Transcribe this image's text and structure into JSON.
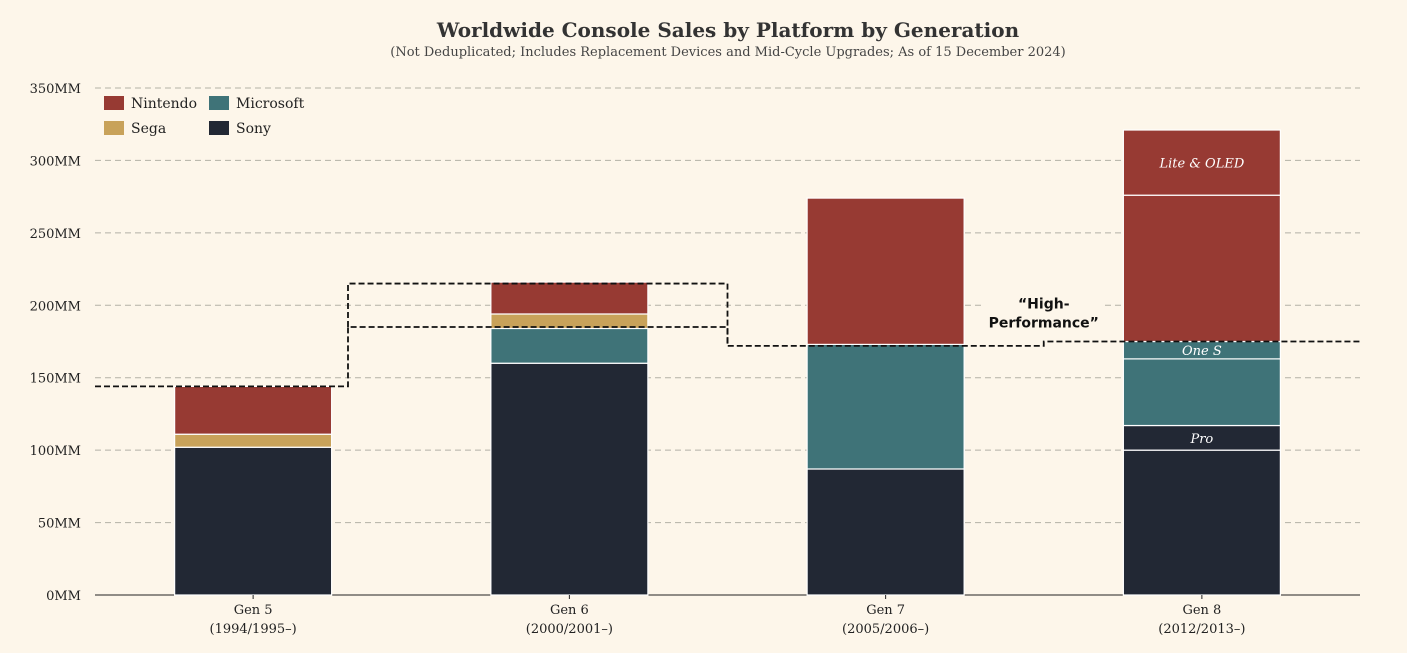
{
  "chart_data": {
    "type": "bar",
    "stacked": true,
    "title": "Worldwide Console Sales by Platform by Generation",
    "subtitle": "(Not Deduplicated; Includes Replacement Devices and Mid-Cycle Upgrades; As of 15 December 2024)",
    "ylim": [
      0,
      350
    ],
    "yticks": [
      0,
      50,
      100,
      150,
      200,
      250,
      300,
      350
    ],
    "ytick_suffix": "MM",
    "grid": true,
    "legend_placement": "top-left",
    "categories": [
      {
        "name": "Gen 5",
        "years": "(1994/1995–)"
      },
      {
        "name": "Gen 6",
        "years": "(2000/2001–)"
      },
      {
        "name": "Gen 7",
        "years": "(2005/2006–)"
      },
      {
        "name": "Gen 8",
        "years": "(2012/2013–)"
      }
    ],
    "colors": {
      "Sony": "#222834",
      "Microsoft": "#3f7378",
      "Sega": "#c8a25a",
      "Nintendo": "#973a33"
    },
    "legend": [
      {
        "name": "Nintendo",
        "color": "#973a33"
      },
      {
        "name": "Microsoft",
        "color": "#3f7378"
      },
      {
        "name": "Sega",
        "color": "#c8a25a"
      },
      {
        "name": "Sony",
        "color": "#222834"
      }
    ],
    "stacks": [
      [
        {
          "platform": "Sony",
          "value": 102
        },
        {
          "platform": "Sega",
          "value": 9
        },
        {
          "platform": "Nintendo",
          "value": 33
        }
      ],
      [
        {
          "platform": "Sony",
          "value": 160
        },
        {
          "platform": "Microsoft",
          "value": 24
        },
        {
          "platform": "Sega",
          "value": 10
        },
        {
          "platform": "Nintendo",
          "value": 22
        }
      ],
      [
        {
          "platform": "Sony",
          "value": 87
        },
        {
          "platform": "Microsoft",
          "value": 86
        },
        {
          "platform": "Nintendo",
          "value": 101
        }
      ],
      [
        {
          "platform": "Sony",
          "value": 100
        },
        {
          "platform": "Sony",
          "value": 17,
          "label": "Pro"
        },
        {
          "platform": "Microsoft",
          "value": 46
        },
        {
          "platform": "Microsoft",
          "value": 12,
          "label": "One S"
        },
        {
          "platform": "Nintendo",
          "value": 101
        },
        {
          "platform": "Nintendo",
          "value": 45,
          "label": "Lite & OLED"
        }
      ]
    ],
    "annotation": {
      "label_line1": "“High-",
      "label_line2": "Performance”",
      "boxes": [
        {
          "category_index": 1,
          "y_bottom": 185,
          "y_top": 215
        }
      ],
      "steps": [
        {
          "from": -0.5,
          "to": 0.3,
          "y": 144
        },
        {
          "from": 0.3,
          "to": 1.5,
          "y": 185
        },
        {
          "from": 1.5,
          "to": 2.5,
          "y": 172
        },
        {
          "from": 2.5,
          "to": 3.5,
          "y": 175
        }
      ]
    }
  }
}
